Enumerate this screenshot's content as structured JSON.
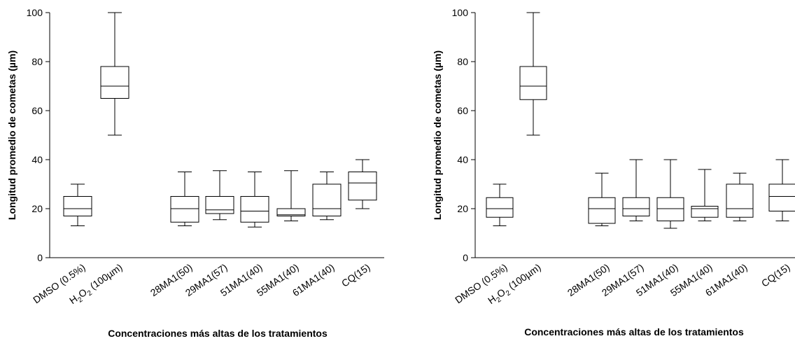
{
  "chart_data": [
    {
      "type": "boxplot",
      "ylabel": "Longitud promedio de cometas (µm)",
      "xlabel": "Concentraciones más altas de los tratamientos",
      "ylim": [
        0,
        100
      ],
      "yticks": [
        "0",
        "20",
        "40",
        "60",
        "80",
        "100"
      ],
      "categories": [
        {
          "label": "DMSO (0.5%)",
          "pre": "DMSO (0.5%)",
          "sub": "",
          "post": ""
        },
        {
          "label": "H2O2 (100µm)",
          "pre": "H",
          "sub": "2",
          "post": "O",
          "sub2": "2",
          "post2": " (100µm)"
        },
        {
          "label": "28MA1(50)",
          "pre": "28MA1(50)",
          "sub": "",
          "post": ""
        },
        {
          "label": "29MA1(57)",
          "pre": "29MA1(57)",
          "sub": "",
          "post": ""
        },
        {
          "label": "51MA1(40)",
          "pre": "51MA1(40)",
          "sub": "",
          "post": ""
        },
        {
          "label": "55MA1(40)",
          "pre": "55MA1(40)",
          "sub": "",
          "post": ""
        },
        {
          "label": "61MA1(40)",
          "pre": "61MA1(40)",
          "sub": "",
          "post": ""
        },
        {
          "label": "CQ(15)",
          "pre": "CQ(15)",
          "sub": "",
          "post": ""
        }
      ],
      "boxes": [
        {
          "min": 13,
          "q1": 17,
          "median": 20,
          "q3": 25,
          "max": 30
        },
        {
          "min": 50,
          "q1": 65,
          "median": 70,
          "q3": 78,
          "max": 100
        },
        {
          "min": 13,
          "q1": 14.5,
          "median": 20,
          "q3": 25,
          "max": 35
        },
        {
          "min": 15.5,
          "q1": 18,
          "median": 19.5,
          "q3": 25,
          "max": 35.5
        },
        {
          "min": 12.5,
          "q1": 14.5,
          "median": 19,
          "q3": 25,
          "max": 35
        },
        {
          "min": 15,
          "q1": 17,
          "median": 17.5,
          "q3": 20,
          "max": 35.5
        },
        {
          "min": 15.5,
          "q1": 17,
          "median": 20,
          "q3": 30,
          "max": 35
        },
        {
          "min": 20,
          "q1": 23.5,
          "median": 30.5,
          "q3": 35,
          "max": 40
        }
      ]
    },
    {
      "type": "boxplot",
      "ylabel": "Longitud promedio de cometas (µm)",
      "xlabel": "Concentraciones más altas de los tratamientos",
      "ylim": [
        0,
        100
      ],
      "yticks": [
        "0",
        "20",
        "40",
        "60",
        "80",
        "100"
      ],
      "categories": [
        {
          "label": "DMSO (0.5%)",
          "pre": "DMSO (0.5%)",
          "sub": "",
          "post": ""
        },
        {
          "label": "H2O2 (100µm)",
          "pre": "H",
          "sub": "2",
          "post": "O",
          "sub2": "2",
          "post2": " (100µm)"
        },
        {
          "label": "28MA1(50)",
          "pre": "28MA1(50)",
          "sub": "",
          "post": ""
        },
        {
          "label": "29MA1(57)",
          "pre": "29MA1(57)",
          "sub": "",
          "post": ""
        },
        {
          "label": "51MA1(40)",
          "pre": "51MA1(40)",
          "sub": "",
          "post": ""
        },
        {
          "label": "55MA1(40)",
          "pre": "55MA1(40)",
          "sub": "",
          "post": ""
        },
        {
          "label": "61MA1(40)",
          "pre": "61MA1(40)",
          "sub": "",
          "post": ""
        },
        {
          "label": "CQ(15)",
          "pre": "CQ(15)",
          "sub": "",
          "post": ""
        }
      ],
      "boxes": [
        {
          "min": 13,
          "q1": 16.5,
          "median": 20,
          "q3": 24.5,
          "max": 30
        },
        {
          "min": 50,
          "q1": 64.5,
          "median": 70,
          "q3": 78,
          "max": 100
        },
        {
          "min": 13,
          "q1": 14,
          "median": 20,
          "q3": 24.5,
          "max": 34.5
        },
        {
          "min": 15,
          "q1": 17,
          "median": 20,
          "q3": 24.5,
          "max": 40
        },
        {
          "min": 12,
          "q1": 15,
          "median": 20,
          "q3": 24.5,
          "max": 40
        },
        {
          "min": 15,
          "q1": 16.5,
          "median": 20,
          "q3": 21,
          "max": 36
        },
        {
          "min": 15,
          "q1": 16.5,
          "median": 20,
          "q3": 30,
          "max": 34.5
        },
        {
          "min": 15,
          "q1": 19,
          "median": 25,
          "q3": 30,
          "max": 40
        }
      ]
    }
  ]
}
